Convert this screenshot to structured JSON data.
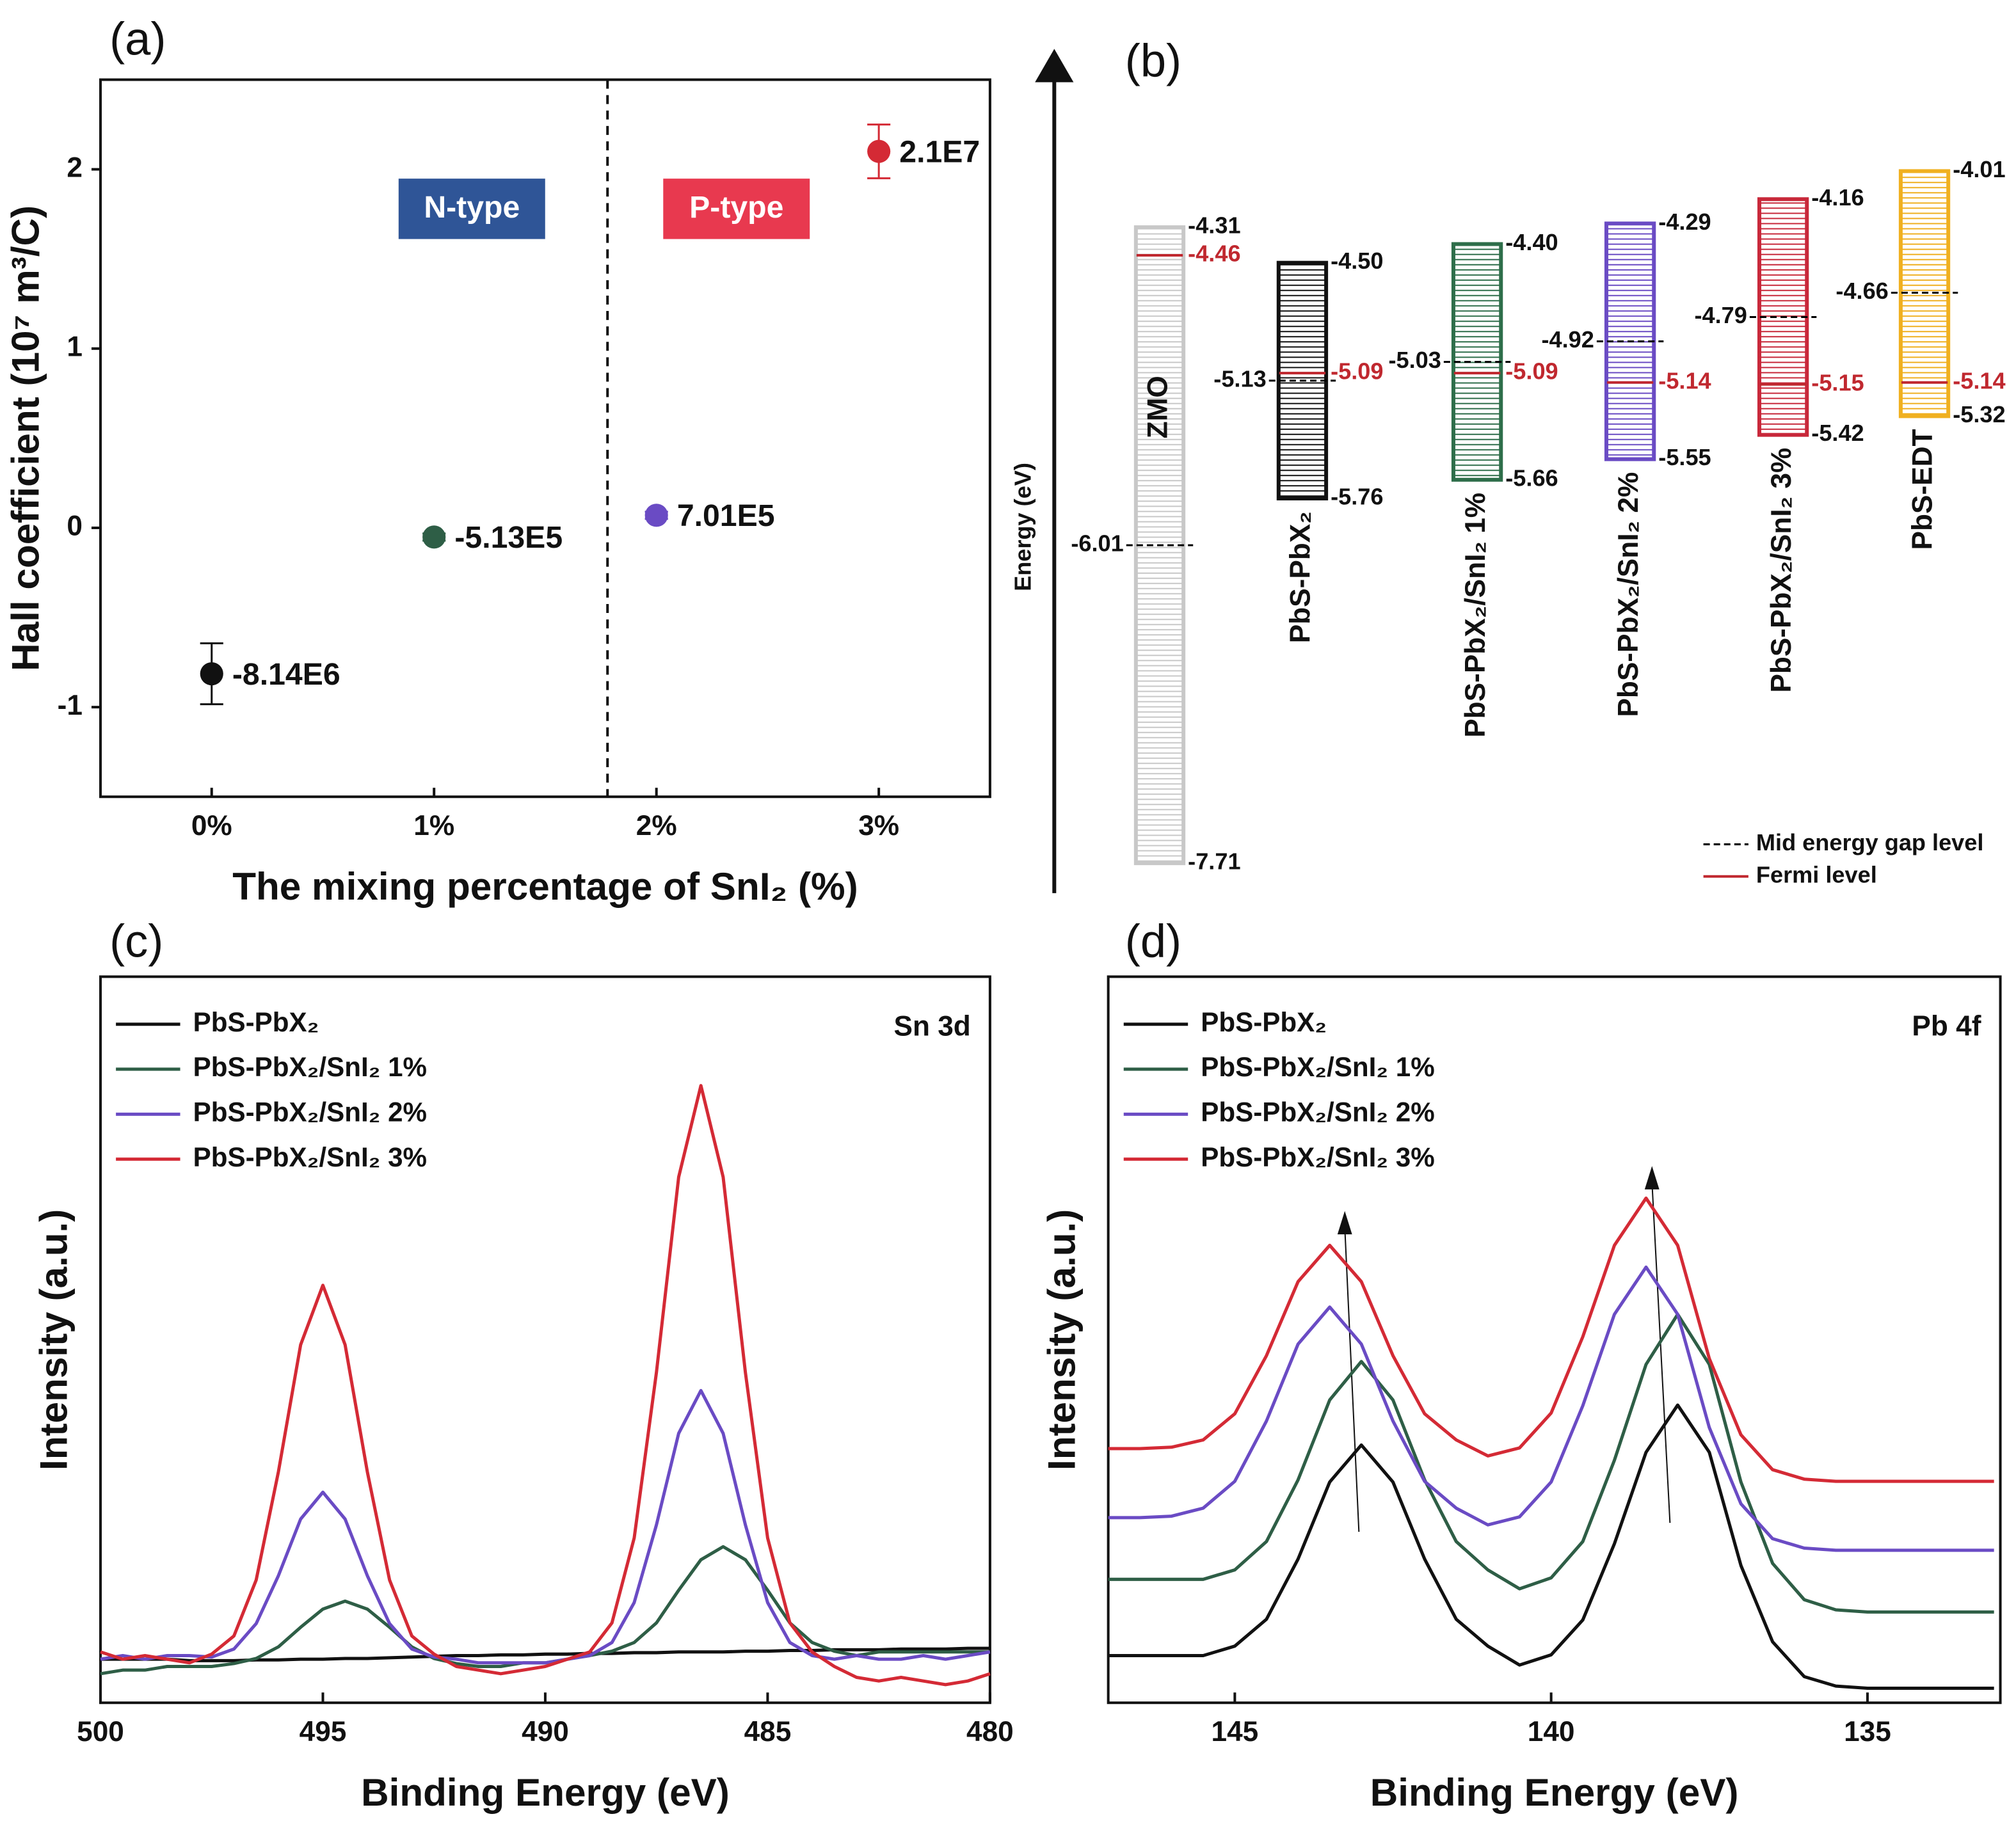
{
  "chart_data": [
    {
      "type": "errorbar",
      "panel_label": "(a)",
      "xlabel": "The mixing percentage of SnI₂ (%)",
      "ylabel": "Hall coefficient (10⁷ m³/C)",
      "categories": [
        "0%",
        "1%",
        "2%",
        "3%"
      ],
      "values": [
        -0.814,
        -0.0513,
        0.0701,
        2.1
      ],
      "value_labels": [
        "-8.14E6",
        "-5.13E5",
        "7.01E5",
        "2.1E7"
      ],
      "errors": [
        0.17,
        0.02,
        0.02,
        0.15
      ],
      "colors": [
        "#111111",
        "#2e5e46",
        "#6a4bc4",
        "#d42a35"
      ],
      "annotations": [
        {
          "text": "N-type",
          "color": "#2f5597"
        },
        {
          "text": "P-type",
          "color": "#e8394f"
        }
      ],
      "ylim": [
        -1.5,
        2.5
      ],
      "yticks": [
        -1,
        0,
        1,
        2
      ]
    },
    {
      "type": "energy_levels",
      "panel_label": "(b)",
      "ylabel": "Energy (eV)",
      "ylim": [
        -7.87,
        -3.37
      ],
      "materials": [
        {
          "name": "ZMO",
          "color": "#c8c8c8",
          "cbm": -4.31,
          "vbm": -7.71,
          "mid": -6.01,
          "fermi": -4.46
        },
        {
          "name": "PbS-PbX₂",
          "color": "#111111",
          "cbm": {
            "value": -4.5,
            "label": "-4.50"
          },
          "vbm": -5.76,
          "mid": -5.13,
          "fermi": -5.09
        },
        {
          "name": "PbS-PbX₂/SnI₂ 1%",
          "color": "#2e6e4a",
          "cbm": {
            "value": -4.4,
            "label": "-4.40"
          },
          "vbm": -5.66,
          "mid": -5.03,
          "fermi": -5.09
        },
        {
          "name": "PbS-PbX₂/SnI₂ 2%",
          "color": "#6a4bc4",
          "cbm": -4.29,
          "vbm": -5.55,
          "mid": -4.92,
          "fermi": -5.14
        },
        {
          "name": "PbS-PbX₂/SnI₂ 3%",
          "color": "#c8283a",
          "cbm": -4.16,
          "vbm": -5.42,
          "mid": -4.79,
          "fermi": -5.15
        },
        {
          "name": "PbS-EDT",
          "color": "#f0b020",
          "cbm": -4.01,
          "vbm": -5.32,
          "mid": -4.66,
          "fermi": -5.14
        }
      ],
      "mid_color": "#000000",
      "fermi_color": "#c0282f",
      "legend": {
        "mid": "Mid energy gap level",
        "fermi": "Fermi level"
      }
    },
    {
      "type": "line",
      "panel_label": "(c)",
      "annotation": "Sn 3d",
      "xlabel": "Binding Energy (eV)",
      "ylabel": "Intensity (a.u.)",
      "xlim": [
        500,
        480
      ],
      "xticks": [
        500,
        495,
        490,
        485,
        480
      ],
      "ylim": [
        0,
        100
      ],
      "x": [
        500,
        499.5,
        499,
        498.5,
        498,
        497.5,
        497,
        496.5,
        496,
        495.5,
        495,
        494.5,
        494,
        493.5,
        493,
        492.5,
        492,
        491.5,
        491,
        490.5,
        490,
        489.5,
        489,
        488.5,
        488,
        487.5,
        487,
        486.5,
        486,
        485.5,
        485,
        484.5,
        484,
        483.5,
        483,
        482.5,
        482,
        481.5,
        481,
        480.5,
        480
      ],
      "series": [
        {
          "name": "PbS-PbX₂",
          "color": "#111111",
          "values": [
            6,
            6,
            6,
            6,
            5.8,
            5.8,
            5.8,
            5.9,
            5.9,
            6,
            6,
            6.1,
            6.1,
            6.2,
            6.3,
            6.4,
            6.5,
            6.5,
            6.6,
            6.6,
            6.7,
            6.7,
            6.8,
            6.8,
            6.9,
            6.9,
            7,
            7,
            7,
            7.1,
            7.1,
            7.2,
            7.2,
            7.3,
            7.3,
            7.3,
            7.4,
            7.4,
            7.4,
            7.5,
            7.5
          ]
        },
        {
          "name": "PbS-PbX₂/SnI₂ 1%",
          "color": "#2e5e46",
          "values": [
            4,
            4.5,
            4.5,
            5,
            5,
            5,
            5.4,
            6.1,
            7.7,
            10.4,
            12.9,
            14,
            12.9,
            10.4,
            7.7,
            6.1,
            5.4,
            5,
            5,
            5.5,
            5.5,
            6,
            6.5,
            7.1,
            8.3,
            11,
            15.5,
            19.7,
            21.5,
            19.7,
            15.5,
            11,
            8.3,
            7.1,
            6.5,
            7,
            7,
            7,
            7,
            7,
            7
          ]
        },
        {
          "name": "PbS-PbX₂/SnI₂ 2%",
          "color": "#6a4bc4",
          "values": [
            6,
            6.5,
            6,
            6.5,
            6.5,
            6.3,
            7.4,
            10.9,
            17.5,
            25.3,
            29,
            25.3,
            17.5,
            10.9,
            7.4,
            6.3,
            6,
            5.5,
            5.5,
            5.5,
            5.5,
            6,
            6.5,
            8.3,
            13.8,
            24.5,
            37.1,
            43,
            37.1,
            24.5,
            13.8,
            8.3,
            6.5,
            6,
            6.5,
            6,
            6,
            6.5,
            6,
            6.5,
            7
          ]
        },
        {
          "name": "PbS-PbX₂/SnI₂ 3%",
          "color": "#d42a35",
          "values": [
            7,
            6,
            6.5,
            6,
            5.5,
            6.7,
            9.2,
            16.9,
            31.8,
            49.3,
            57.5,
            49.3,
            31.8,
            16.9,
            9.2,
            6.7,
            5,
            4.5,
            4,
            4.5,
            5,
            6,
            7,
            11,
            22.7,
            45.5,
            72.4,
            85,
            72.4,
            45.5,
            22.7,
            11,
            7,
            5,
            3.5,
            3,
            3.5,
            3,
            2.5,
            3,
            4
          ]
        }
      ]
    },
    {
      "type": "line",
      "panel_label": "(d)",
      "annotation": "Pb 4f",
      "xlabel": "Binding Energy (eV)",
      "ylabel": "Intensity (a.u.)",
      "xlim": [
        147,
        132.9
      ],
      "xticks": [
        145,
        140,
        135
      ],
      "ylim": [
        0,
        100
      ],
      "x": [
        147,
        146.5,
        146,
        145.5,
        145,
        144.5,
        144,
        143.5,
        143,
        142.5,
        142,
        141.5,
        141,
        140.5,
        140,
        139.5,
        139,
        138.5,
        138,
        137.5,
        137,
        136.5,
        136,
        135.5,
        135,
        134.5,
        134,
        133.5,
        133
      ],
      "series": [
        {
          "name": "PbS-PbX₂",
          "color": "#111111",
          "values": [
            6.5,
            6.5,
            6.5,
            6.5,
            7.8,
            11.5,
            19.8,
            30.4,
            35.5,
            30.4,
            19.8,
            11.5,
            7.8,
            5.2,
            6.6,
            11.4,
            21.9,
            34.5,
            41,
            34.5,
            18.9,
            8.4,
            3.6,
            2.3,
            2,
            2,
            2,
            2,
            2
          ]
        },
        {
          "name": "PbS-PbX₂/SnI₂ 1%",
          "color": "#2e5e46",
          "values": [
            17,
            17,
            17,
            17,
            18.3,
            22.2,
            30.7,
            41.7,
            47,
            41.7,
            30.7,
            22.2,
            18.3,
            15.7,
            17.2,
            22.2,
            33.4,
            46.6,
            53.5,
            46.6,
            30.4,
            19.2,
            14.2,
            12.8,
            12.5,
            12.5,
            12.5,
            12.5,
            12.5
          ]
        },
        {
          "name": "PbS-PbX₂/SnI₂ 2%",
          "color": "#6a4bc4",
          "values": [
            25.5,
            25.5,
            25.7,
            26.8,
            30.5,
            38.8,
            49.4,
            54.5,
            49.4,
            38.8,
            30.5,
            26.8,
            24.5,
            25.6,
            30.4,
            40.9,
            53.5,
            60,
            53.5,
            37.9,
            27.4,
            22.6,
            21.3,
            21,
            21,
            21,
            21,
            21,
            21
          ]
        },
        {
          "name": "PbS-PbX₂/SnI₂ 3%",
          "color": "#d42a35",
          "values": [
            35,
            35,
            35.2,
            36.2,
            39.8,
            47.8,
            58,
            63,
            58,
            47.8,
            39.8,
            36.2,
            34,
            35.1,
            39.9,
            50.4,
            63,
            69.5,
            63,
            47.4,
            36.9,
            32.1,
            30.8,
            30.5,
            30.5,
            30.5,
            30.5,
            30.5,
            30.5
          ]
        }
      ]
    }
  ]
}
